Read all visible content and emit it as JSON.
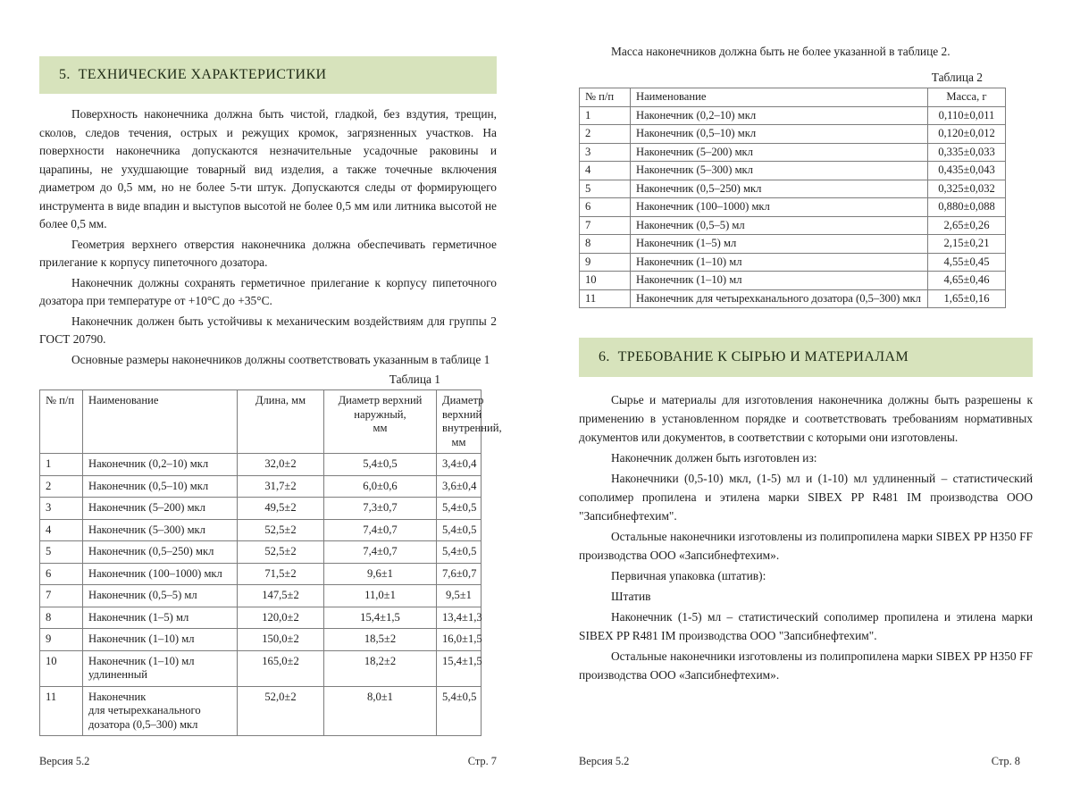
{
  "colors": {
    "section_band": "#d7e3bc",
    "heading_text": "#1f2b15",
    "body_text": "#1e1e1e",
    "table_border": "#7d7d7d"
  },
  "left_page": {
    "heading": "5.  ТЕХНИЧЕСКИЕ ХАРАКТЕРИСТИКИ",
    "paragraphs": [
      "Поверхность наконечника должна быть чистой, гладкой, без вздутия, трещин, сколов, следов течения, острых и режущих кромок, загрязненных участков. На поверхности наконечника допускаются незначительные усадочные раковины и царапины, не ухудшающие товарный вид изделия, а также точечные включения диаметром до 0,5 мм, но не более 5-ти штук. Допускаются следы от формирующего инструмента в виде впадин и выступов высотой не более 0,5 мм или литника высотой не более 0,5 мм.",
      "Геометрия верхнего отверстия наконечника должна обеспечивать герметичное прилегание к корпусу пипеточного дозатора.",
      "Наконечник должны сохранять герметичное прилегание к корпусу пипеточного дозатора при температуре от +10°С до +35°С.",
      "Наконечник должен быть устойчивы к механическим воздействиям для группы 2 ГОСТ 20790.",
      "Основные размеры наконечников должны соответствовать указанным в таблице 1"
    ],
    "table_caption": "Таблица 1",
    "table": {
      "headers": [
        "№ п/п",
        "Наименование",
        "Длина, мм",
        "Диаметр верхний\nнаружный,\nмм",
        "Диаметр верхний\nвнутренний,\nмм"
      ],
      "rows": [
        [
          "1",
          "Наконечник (0,2–10) мкл",
          "32,0±2",
          "5,4±0,5",
          "3,4±0,4"
        ],
        [
          "2",
          "Наконечник (0,5–10) мкл",
          "31,7±2",
          "6,0±0,6",
          "3,6±0,4"
        ],
        [
          "3",
          "Наконечник (5–200) мкл",
          "49,5±2",
          "7,3±0,7",
          "5,4±0,5"
        ],
        [
          "4",
          "Наконечник (5–300) мкл",
          "52,5±2",
          "7,4±0,7",
          "5,4±0,5"
        ],
        [
          "5",
          "Наконечник (0,5–250) мкл",
          "52,5±2",
          "7,4±0,7",
          "5,4±0,5"
        ],
        [
          "6",
          "Наконечник (100–1000) мкл",
          "71,5±2",
          "9,6±1",
          "7,6±0,7"
        ],
        [
          "7",
          "Наконечник (0,5–5) мл",
          "147,5±2",
          "11,0±1",
          "9,5±1"
        ],
        [
          "8",
          "Наконечник (1–5) мл",
          "120,0±2",
          "15,4±1,5",
          "13,4±1,3"
        ],
        [
          "9",
          "Наконечник (1–10) мл",
          "150,0±2",
          "18,5±2",
          "16,0±1,5"
        ],
        [
          "10",
          "Наконечник (1–10) мл\nудлиненный",
          "165,0±2",
          "18,2±2",
          "15,4±1,5"
        ],
        [
          "11",
          "Наконечник\nдля четырехканального\nдозатора (0,5–300) мкл",
          "52,0±2",
          "8,0±1",
          "5,4±0,5"
        ]
      ]
    },
    "footer": {
      "version": "Версия 5.2",
      "page": "Стр. 7"
    }
  },
  "right_page": {
    "intro_paragraph": "Масса наконечников должна быть не более указанной в таблице 2.",
    "table_caption": "Таблица 2",
    "table": {
      "headers": [
        "№ п/п",
        "Наименование",
        "Масса, г"
      ],
      "rows": [
        [
          "1",
          "Наконечник (0,2–10) мкл",
          "0,110±0,011"
        ],
        [
          "2",
          "Наконечник (0,5–10) мкл",
          "0,120±0,012"
        ],
        [
          "3",
          "Наконечник (5–200) мкл",
          "0,335±0,033"
        ],
        [
          "4",
          "Наконечник (5–300) мкл",
          "0,435±0,043"
        ],
        [
          "5",
          "Наконечник (0,5–250) мкл",
          "0,325±0,032"
        ],
        [
          "6",
          "Наконечник (100–1000) мкл",
          "0,880±0,088"
        ],
        [
          "7",
          "Наконечник (0,5–5) мл",
          "2,65±0,26"
        ],
        [
          "8",
          "Наконечник (1–5) мл",
          "2,15±0,21"
        ],
        [
          "9",
          "Наконечник (1–10) мл",
          "4,55±0,45"
        ],
        [
          "10",
          "Наконечник (1–10) мл",
          "4,65±0,46"
        ],
        [
          "11",
          "Наконечник для четырехканального дозатора (0,5–300) мкл",
          "1,65±0,16"
        ]
      ]
    },
    "heading": "6.  ТРЕБОВАНИЕ К СЫРЬЮ И МАТЕРИАЛАМ",
    "paragraphs": [
      "Сырье и материалы для изготовления наконечника должны быть разрешены к применению в установленном порядке и соответствовать требованиям нормативных документов или документов, в соответствии с которыми они изготовлены.",
      "Наконечник должен быть изготовлен из:",
      "Наконечники (0,5-10) мкл, (1-5) мл и (1-10) мл удлиненный – статистический сополимер пропилена и этилена марки SIBEX PP R481 IM производства ООО \"Запсибнефтехим\".",
      "Остальные наконечники изготовлены из полипропилена марки SIBEX PP H350 FF производства ООО «Запсибнефтехим».",
      "Первичная упаковка (штатив):",
      "Штатив",
      "Наконечник (1-5) мл – статистический сополимер пропилена и этилена марки SIBEX PP R481 IM производства ООО \"Запсибнефтехим\".",
      "Остальные наконечники изготовлены из полипропилена марки SIBEX PP H350 FF производства ООО «Запсибнефтехим»."
    ],
    "footer": {
      "version": "Версия 5.2",
      "page": "Стр. 8"
    }
  }
}
